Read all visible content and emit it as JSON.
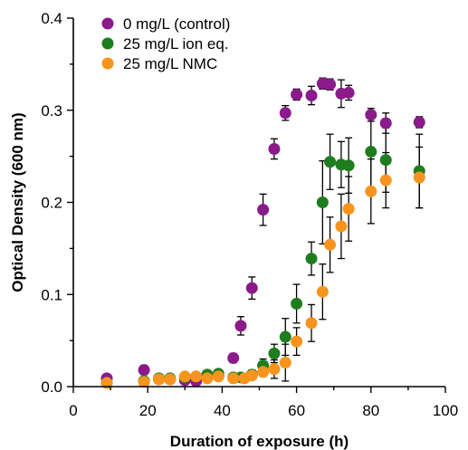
{
  "chart_data": {
    "type": "scatter",
    "xlabel": "Duration of exposure (h)",
    "ylabel": "Optical Density (600 nm)",
    "xlim": [
      0,
      100
    ],
    "ylim": [
      0,
      0.4
    ],
    "xticks": [
      0,
      20,
      40,
      60,
      80,
      100
    ],
    "yticks": [
      0.0,
      0.1,
      0.2,
      0.3,
      0.4
    ],
    "xtick_labels": [
      "0",
      "20",
      "40",
      "60",
      "80",
      "100"
    ],
    "ytick_labels": [
      "0.0",
      "0.1",
      "0.2",
      "0.3",
      "0.4"
    ],
    "grid": false,
    "legend_position": "top-left",
    "series": [
      {
        "name": "0 mg/L (control)",
        "color": "#8b1a8b",
        "x": [
          9,
          19,
          23,
          26,
          30,
          33,
          36,
          39,
          43,
          45,
          48,
          51,
          54,
          57,
          60,
          64,
          67,
          69,
          72,
          74,
          80,
          84,
          93
        ],
        "y": [
          0.009,
          0.018,
          0.008,
          0.008,
          0.007,
          0.006,
          0.01,
          0.012,
          0.031,
          0.066,
          0.107,
          0.192,
          0.258,
          0.297,
          0.317,
          0.316,
          0.329,
          0.328,
          0.318,
          0.319,
          0.295,
          0.286,
          0.287
        ],
        "err": [
          0.004,
          0.005,
          0.003,
          0.003,
          0.003,
          0.003,
          0.003,
          0.004,
          0.005,
          0.01,
          0.012,
          0.017,
          0.011,
          0.008,
          0.006,
          0.01,
          0.006,
          0.006,
          0.015,
          0.008,
          0.007,
          0.011,
          0.006
        ]
      },
      {
        "name": "25 mg/L ion eq.",
        "color": "#1e7d1e",
        "x": [
          9,
          19,
          23,
          26,
          30,
          33,
          36,
          39,
          43,
          45,
          48,
          51,
          54,
          57,
          60,
          64,
          67,
          69,
          72,
          74,
          80,
          84,
          93
        ],
        "y": [
          0.004,
          0.006,
          0.009,
          0.009,
          0.01,
          0.011,
          0.013,
          0.014,
          0.01,
          0.01,
          0.013,
          0.023,
          0.036,
          0.054,
          0.09,
          0.139,
          0.2,
          0.244,
          0.241,
          0.24,
          0.255,
          0.246,
          0.234
        ],
        "err": [
          0.004,
          0.004,
          0.004,
          0.004,
          0.004,
          0.004,
          0.004,
          0.004,
          0.004,
          0.004,
          0.005,
          0.007,
          0.01,
          0.02,
          0.021,
          0.018,
          0.045,
          0.03,
          0.025,
          0.03,
          0.04,
          0.035,
          0.04
        ]
      },
      {
        "name": "25 mg/L NMC",
        "color": "#f7941d",
        "x": [
          9,
          19,
          23,
          26,
          30,
          33,
          36,
          39,
          43,
          46,
          48,
          51,
          54,
          57,
          60,
          64,
          67,
          69,
          72,
          74,
          80,
          84,
          93
        ],
        "y": [
          0.004,
          0.005,
          0.008,
          0.008,
          0.011,
          0.011,
          0.009,
          0.011,
          0.009,
          0.009,
          0.012,
          0.016,
          0.019,
          0.026,
          0.049,
          0.069,
          0.103,
          0.154,
          0.174,
          0.193,
          0.212,
          0.224,
          0.227
        ],
        "err": [
          0.004,
          0.004,
          0.004,
          0.004,
          0.004,
          0.004,
          0.004,
          0.004,
          0.004,
          0.004,
          0.004,
          0.005,
          0.01,
          0.02,
          0.015,
          0.02,
          0.03,
          0.03,
          0.035,
          0.035,
          0.035,
          0.03,
          0.033
        ]
      }
    ]
  }
}
